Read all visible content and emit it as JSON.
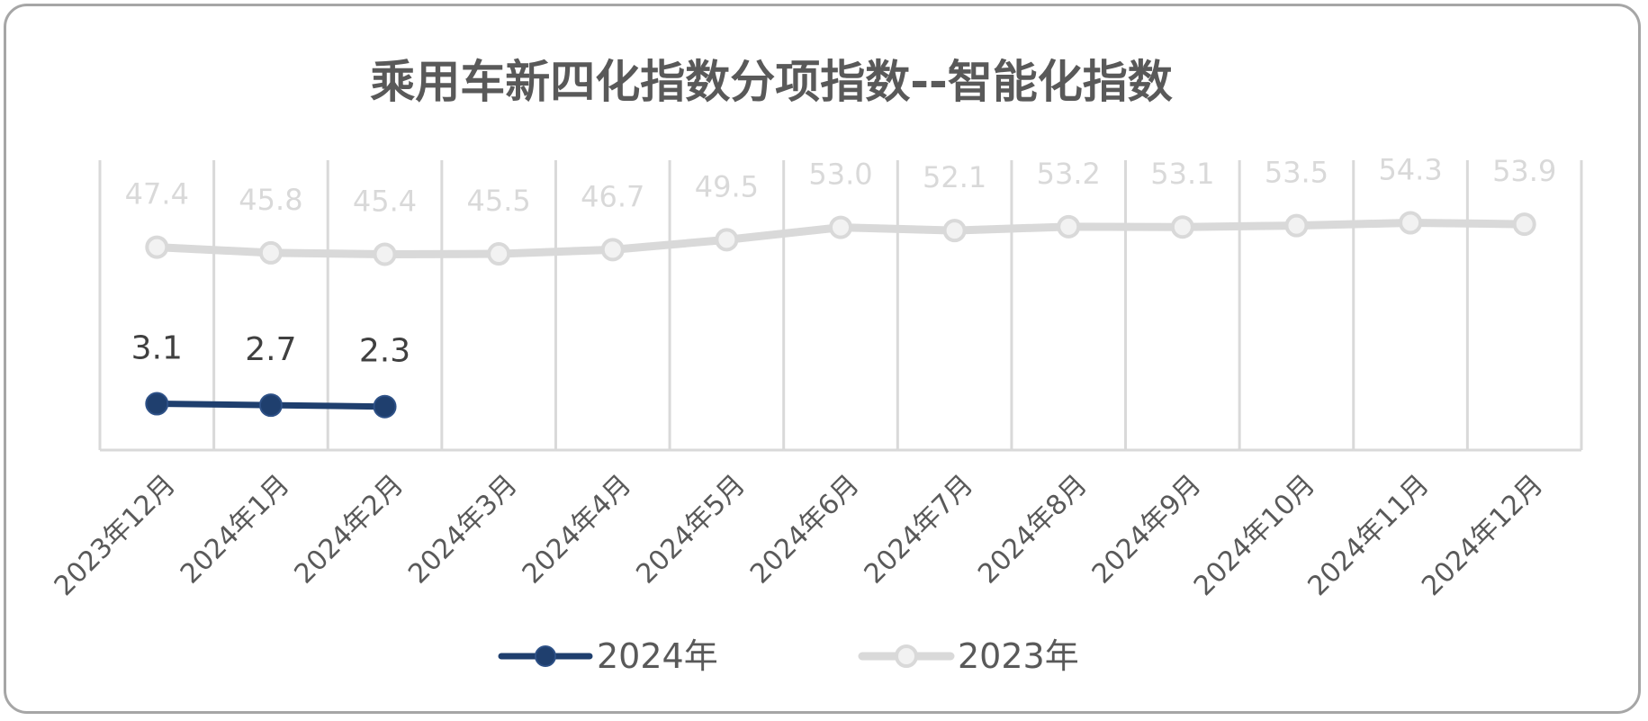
{
  "chart_data": {
    "type": "line",
    "title": "乘用车新四化指数分项指数--智能化指数",
    "categories": [
      "2023年12月",
      "2024年1月",
      "2024年2月",
      "2024年3月",
      "2024年4月",
      "2024年5月",
      "2024年6月",
      "2024年7月",
      "2024年8月",
      "2024年9月",
      "2024年10月",
      "2024年11月",
      "2024年12月"
    ],
    "series": [
      {
        "name": "2024年",
        "values": [
          3.1,
          2.7,
          2.3,
          null,
          null,
          null,
          null,
          null,
          null,
          null,
          null,
          null,
          null
        ],
        "color": "#1f3f6e",
        "label_color": "#404040"
      },
      {
        "name": "2023年",
        "values": [
          47.4,
          45.8,
          45.4,
          45.5,
          46.7,
          49.5,
          53.0,
          52.1,
          53.2,
          53.1,
          53.5,
          54.3,
          53.9
        ],
        "color": "#d9d9d9",
        "label_color": "#d9d9d9"
      }
    ],
    "ylim": [
      -10,
      72
    ],
    "grid": "vertical",
    "legend": "bottom-center",
    "colors": {
      "grid": "#d9d9d9",
      "axis_label": "#595959",
      "title": "#595959"
    }
  }
}
